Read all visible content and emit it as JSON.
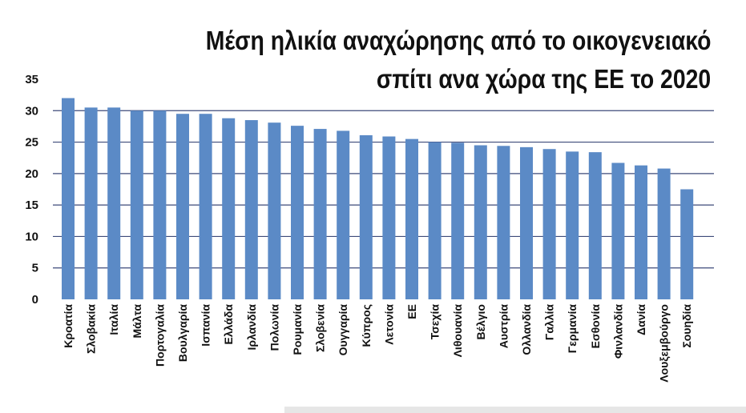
{
  "chart_data": {
    "type": "bar",
    "title_lines": [
      "Μέση ηλικία αναχώρησης από το οικογενειακό",
      "σπίτι ανα χώρα της ΕΕ το 2020"
    ],
    "xlabel": "",
    "ylabel": "",
    "ylim": [
      0,
      35
    ],
    "yticks": [
      0,
      5,
      10,
      15,
      20,
      25,
      30,
      35
    ],
    "grid": true,
    "bar_color": "#5b8ac6",
    "grid_color": "#3d4a7a",
    "categories": [
      "Κροατία",
      "Σλοβακία",
      "Ιταλία",
      "Μάλτα",
      "Πορτογαλία",
      "Βουλγαρία",
      "Ισπανία",
      "Ελλάδα",
      "Ιρλανδία",
      "Πολωνία",
      "Ρουμανία",
      "Σλοβενία",
      "Ουγγαρία",
      "Κύπρος",
      "Λετονία",
      "ΕΕ",
      "Τσεχία",
      "Λιθουανία",
      "Βέλγιο",
      "Αυστρία",
      "Ολλανδία",
      "Γαλλία",
      "Γερμανία",
      "Εσθονία",
      "Φινλανδία",
      "Δανία",
      "Λουξεμβούργο",
      "Σουηδία"
    ],
    "values": [
      32.0,
      30.5,
      30.5,
      30.0,
      30.0,
      29.5,
      29.5,
      28.8,
      28.5,
      28.1,
      27.6,
      27.1,
      26.8,
      26.1,
      25.9,
      25.5,
      25.0,
      24.9,
      24.5,
      24.4,
      24.2,
      23.9,
      23.5,
      23.4,
      21.7,
      21.3,
      20.8,
      17.5
    ]
  }
}
